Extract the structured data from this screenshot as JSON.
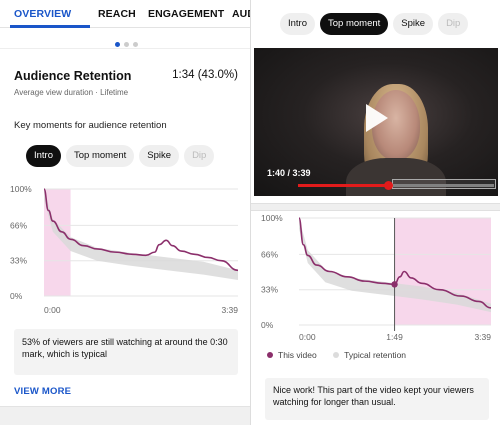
{
  "left": {
    "tabs": [
      {
        "label": "OVERVIEW",
        "active": true
      },
      {
        "label": "REACH",
        "active": false
      },
      {
        "label": "ENGAGEMENT",
        "active": false
      },
      {
        "label": "AUD",
        "active": false
      }
    ],
    "card": {
      "title": "Audience Retention",
      "value": "1:34 (43.0%)",
      "subtitle": "Average view duration · Lifetime",
      "key_moments_label": "Key moments for audience retention"
    },
    "chips": [
      {
        "label": "Intro",
        "selected": true,
        "faded": false
      },
      {
        "label": "Top moment",
        "selected": false,
        "faded": false
      },
      {
        "label": "Spike",
        "selected": false,
        "faded": false
      },
      {
        "label": "Dip",
        "selected": false,
        "faded": true
      }
    ],
    "note": "53% of viewers are still watching at around the 0:30 mark, which is typical",
    "view_more": "VIEW MORE"
  },
  "right": {
    "chips": [
      {
        "label": "Intro",
        "selected": false,
        "faded": false
      },
      {
        "label": "Top moment",
        "selected": true,
        "faded": false
      },
      {
        "label": "Spike",
        "selected": false,
        "faded": false
      },
      {
        "label": "Dip",
        "selected": false,
        "faded": true
      }
    ],
    "video": {
      "time": "1:40 / 3:39",
      "progress": 0.456
    },
    "legend": [
      {
        "label": "This video",
        "color": "#8b2f6b"
      },
      {
        "label": "Typical retention",
        "color": "#dcdcdc"
      }
    ],
    "note": "Nice work! This part of the video kept your viewers watching for longer than usual."
  },
  "colors": {
    "accent": "#1a56c9",
    "this_video": "#8b2f6b",
    "typical_band": "#d9d9d9",
    "highlight": "#f7d7eb"
  },
  "chart_data": [
    {
      "type": "line",
      "y_ticks": [
        "100%",
        "66%",
        "33%",
        "0%"
      ],
      "x_tick_labels": [
        "0:00",
        "3:39"
      ],
      "xlim": [
        0,
        219
      ],
      "ylim": [
        0,
        100
      ],
      "highlight_range": [
        0,
        30
      ],
      "series": [
        {
          "name": "This video",
          "x": [
            0,
            5,
            10,
            20,
            30,
            45,
            60,
            80,
            100,
            115,
            125,
            130,
            138,
            145,
            155,
            170,
            185,
            200,
            219
          ],
          "values": [
            100,
            80,
            70,
            60,
            53,
            47,
            44,
            41,
            39,
            38,
            41,
            48,
            52,
            47,
            42,
            39,
            36,
            33,
            24
          ]
        },
        {
          "name": "Typical retention",
          "x": [
            0,
            10,
            30,
            60,
            100,
            140,
            180,
            219
          ],
          "values_low": [
            90,
            60,
            42,
            33,
            28,
            24,
            20,
            15
          ],
          "values_high": [
            100,
            72,
            55,
            45,
            40,
            36,
            32,
            24
          ]
        }
      ]
    },
    {
      "type": "line",
      "y_ticks": [
        "100%",
        "66%",
        "33%",
        "0%"
      ],
      "x_tick_labels": [
        "0:00",
        "1:49",
        "3:39"
      ],
      "xlim": [
        0,
        219
      ],
      "ylim": [
        0,
        100
      ],
      "highlight_range": [
        109,
        219
      ],
      "marker_x": 109,
      "series": [
        {
          "name": "This video",
          "x": [
            0,
            5,
            10,
            20,
            35,
            55,
            75,
            95,
            109,
            115,
            120,
            128,
            140,
            160,
            185,
            205,
            219
          ],
          "values": [
            100,
            75,
            65,
            56,
            50,
            45,
            41,
            39,
            38,
            45,
            50,
            44,
            39,
            33,
            27,
            22,
            16
          ]
        },
        {
          "name": "Typical retention",
          "x": [
            0,
            10,
            30,
            60,
            100,
            140,
            180,
            219
          ],
          "values_low": [
            90,
            58,
            40,
            32,
            28,
            24,
            19,
            12
          ],
          "values_high": [
            100,
            70,
            52,
            44,
            40,
            36,
            30,
            20
          ]
        }
      ]
    }
  ]
}
